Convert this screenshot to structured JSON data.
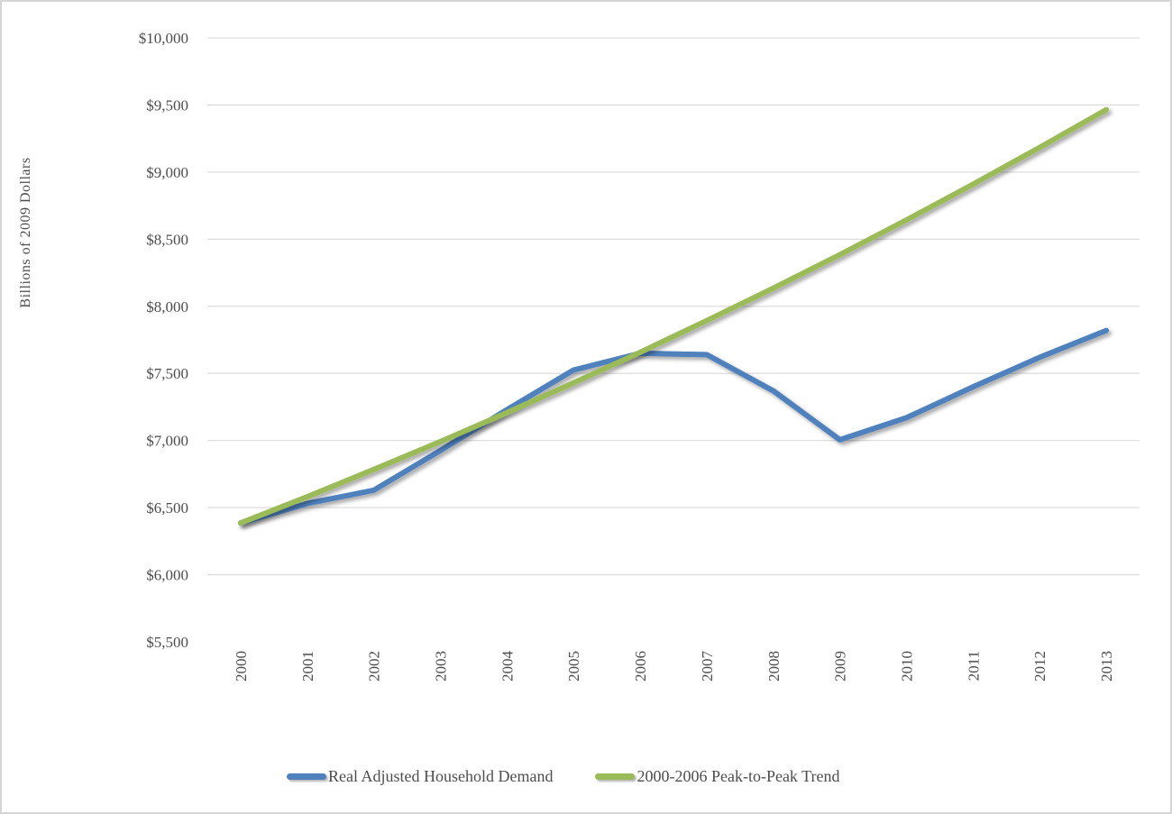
{
  "figure": {
    "background": "#ffffff",
    "border_color": "#d5d5d5"
  },
  "chart_data": {
    "type": "line",
    "title": "",
    "xlabel": "",
    "ylabel": "Billions of 2009 Dollars",
    "categories": [
      "2000",
      "2001",
      "2002",
      "2003",
      "2004",
      "2005",
      "2006",
      "2007",
      "2008",
      "2009",
      "2010",
      "2011",
      "2012",
      "2013"
    ],
    "series": [
      {
        "name": "Real Adjusted Household Demand",
        "color": "#4f81bd",
        "values": [
          6385,
          6530,
          6630,
          6925,
          7230,
          7525,
          7650,
          7640,
          7370,
          7005,
          7170,
          7400,
          7620,
          7820
        ]
      },
      {
        "name": "2000-2006 Peak-to-Peak Trend",
        "color": "#9bbb59",
        "values": [
          6385,
          6581,
          6784,
          6992,
          7207,
          7429,
          7657,
          7893,
          8135,
          8385,
          8643,
          8909,
          9183,
          9465
        ]
      }
    ],
    "ylim": [
      5500,
      10000
    ],
    "ytick_step": 500,
    "ytick_prefix": "$",
    "grid": "horizontal",
    "gridline_color": "#d9d9d9",
    "axis_line_color": "#bfbfbf",
    "text_color": "#4d4d4d",
    "legend_position": "bottom"
  }
}
